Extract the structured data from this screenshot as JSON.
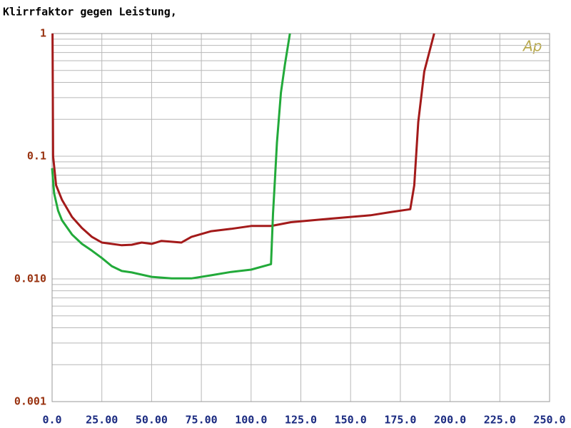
{
  "chart_data": {
    "type": "line",
    "title": "Klirrfaktor gegen Leistung,",
    "logo": "Ap",
    "xlim": [
      0,
      250
    ],
    "xticks": [
      {
        "value": 0,
        "label": "0.0"
      },
      {
        "value": 25,
        "label": "25.00"
      },
      {
        "value": 50,
        "label": "50.00"
      },
      {
        "value": 75,
        "label": "75.00"
      },
      {
        "value": 100,
        "label": "100.0"
      },
      {
        "value": 125,
        "label": "125.0"
      },
      {
        "value": 150,
        "label": "150.0"
      },
      {
        "value": 175,
        "label": "175.0"
      },
      {
        "value": 200,
        "label": "200.0"
      },
      {
        "value": 225,
        "label": "225.0"
      },
      {
        "value": 250,
        "label": "250.0"
      }
    ],
    "ylim": [
      0.001,
      1
    ],
    "log_y": true,
    "yticks": [
      0.001,
      {
        "value": 0.01,
        "label": "0.010"
      },
      0.1,
      1
    ],
    "grid": true,
    "series": [
      {
        "color": "#a31a1a",
        "x": [
          0.2,
          0.5,
          2,
          5,
          10,
          15,
          20,
          25,
          35,
          40,
          45,
          50,
          55,
          65,
          70,
          80,
          90,
          100,
          110,
          120,
          140,
          160,
          170,
          180,
          182,
          184,
          187,
          192
        ],
        "values": [
          1,
          0.1,
          0.058,
          0.044,
          0.032,
          0.026,
          0.022,
          0.0198,
          0.0188,
          0.019,
          0.0198,
          0.0193,
          0.0204,
          0.0198,
          0.022,
          0.0245,
          0.0256,
          0.027,
          0.027,
          0.029,
          0.031,
          0.033,
          0.035,
          0.037,
          0.058,
          0.19,
          0.49,
          1
        ]
      },
      {
        "color": "#22aa3a",
        "x": [
          0,
          1,
          3,
          5,
          10,
          15,
          20,
          25,
          30,
          35,
          40,
          50,
          60,
          70,
          80,
          90,
          100,
          110,
          111,
          112,
          113,
          115,
          117,
          119.5
        ],
        "values": [
          0.08,
          0.05,
          0.036,
          0.03,
          0.023,
          0.0193,
          0.017,
          0.0148,
          0.0127,
          0.0116,
          0.0113,
          0.0104,
          0.0101,
          0.0101,
          0.0107,
          0.0114,
          0.0119,
          0.0132,
          0.034,
          0.066,
          0.129,
          0.33,
          0.56,
          1
        ]
      }
    ]
  }
}
